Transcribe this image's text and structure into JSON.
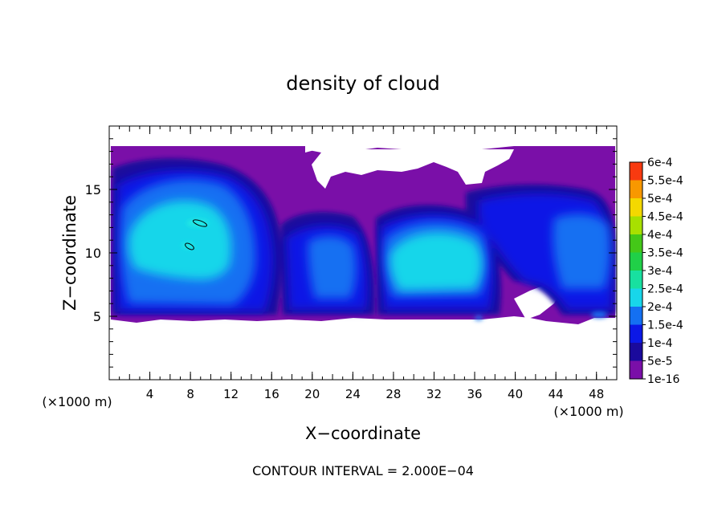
{
  "chart_data": {
    "type": "heatmap",
    "title": "density of cloud",
    "xlabel": "X−coordinate",
    "ylabel": "Z−coordinate",
    "x_unit_label": "(×1000 m)",
    "y_unit_label": "(×1000 m)",
    "xlim": [
      0,
      50
    ],
    "ylim": [
      0,
      20
    ],
    "x_ticks": [
      4,
      8,
      12,
      16,
      20,
      24,
      28,
      32,
      36,
      40,
      44,
      48
    ],
    "x_tick_labels": [
      "4",
      "8",
      "12",
      "16",
      "20",
      "24",
      "28",
      "32",
      "36",
      "40",
      "44",
      "48"
    ],
    "y_ticks": [
      5,
      10,
      15
    ],
    "y_tick_labels": [
      "5",
      "10",
      "15"
    ],
    "contour_interval_text": "CONTOUR INTERVAL = 2.000E−04",
    "colorbar": {
      "levels": [
        {
          "label": "1e-16",
          "color": "#7a0fa8"
        },
        {
          "label": "5e-5",
          "color": "#1a0a9c"
        },
        {
          "label": "1e-4",
          "color": "#0b18e6"
        },
        {
          "label": "1.5e-4",
          "color": "#1470f2"
        },
        {
          "label": "2e-4",
          "color": "#18d6ea"
        },
        {
          "label": "2.5e-4",
          "color": "#18e0a0"
        },
        {
          "label": "3e-4",
          "color": "#20d048"
        },
        {
          "label": "3.5e-4",
          "color": "#44c818"
        },
        {
          "label": "4e-4",
          "color": "#a8e000"
        },
        {
          "label": "4.5e-4",
          "color": "#f4d800"
        },
        {
          "label": "5e-4",
          "color": "#f89800"
        },
        {
          "label": "5.5e-4",
          "color": "#f83a10"
        },
        {
          "label": "6e-4",
          "color": "#f07878"
        }
      ],
      "top_color": "#f6a0a0"
    }
  }
}
